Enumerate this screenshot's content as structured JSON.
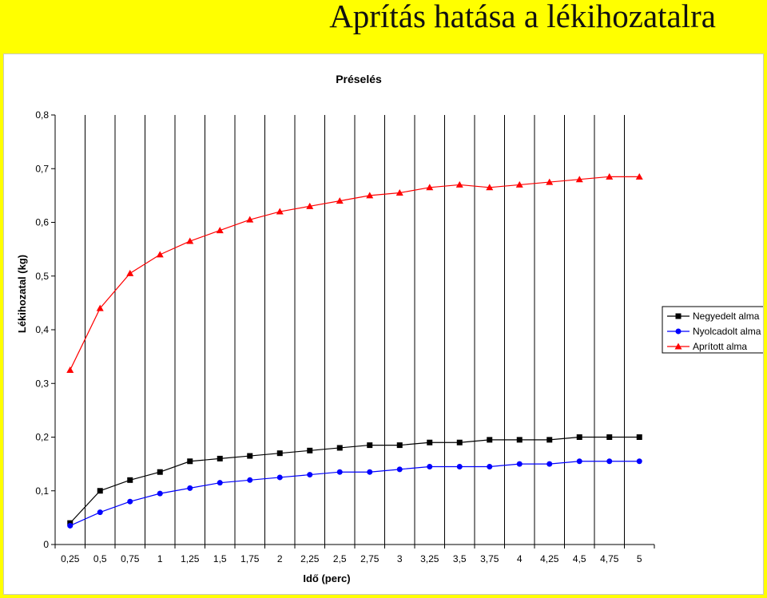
{
  "slide": {
    "title": "Aprítás hatása a lékihozatalra"
  },
  "chart_data": {
    "type": "line",
    "title": "Préselés",
    "xlabel": "Idő (perc)",
    "ylabel": "Lékihozatal (kg)",
    "categories": [
      "0,25",
      "0,5",
      "0,75",
      "1",
      "1,25",
      "1,5",
      "1,75",
      "2",
      "2,25",
      "2,5",
      "2,75",
      "3",
      "3,25",
      "3,5",
      "3,75",
      "4",
      "4,25",
      "4,5",
      "4,75",
      "5"
    ],
    "ylim": [
      0,
      0.8
    ],
    "yticks": [
      0,
      0.1,
      0.2,
      0.3,
      0.4,
      0.5,
      0.6,
      0.7,
      0.8
    ],
    "ytick_labels": [
      "0",
      "0,1",
      "0,2",
      "0,3",
      "0,4",
      "0,5",
      "0,6",
      "0,7",
      "0,8"
    ],
    "grid": "vertical",
    "legend_position": "right",
    "series": [
      {
        "name": "Negyedelt alma",
        "color": "#000000",
        "marker": "square",
        "values": [
          0.04,
          0.1,
          0.12,
          0.135,
          0.155,
          0.16,
          0.165,
          0.17,
          0.175,
          0.18,
          0.185,
          0.185,
          0.19,
          0.19,
          0.195,
          0.195,
          0.195,
          0.2,
          0.2,
          0.2
        ]
      },
      {
        "name": "Nyolcadolt alma",
        "color": "#0000ff",
        "marker": "circle",
        "values": [
          0.035,
          0.06,
          0.08,
          0.095,
          0.105,
          0.115,
          0.12,
          0.125,
          0.13,
          0.135,
          0.135,
          0.14,
          0.145,
          0.145,
          0.145,
          0.15,
          0.15,
          0.155,
          0.155,
          0.155
        ]
      },
      {
        "name": "Aprított alma",
        "color": "#ff0000",
        "marker": "triangle",
        "values": [
          0.325,
          0.44,
          0.505,
          0.54,
          0.565,
          0.585,
          0.605,
          0.62,
          0.63,
          0.64,
          0.65,
          0.655,
          0.665,
          0.67,
          0.665,
          0.67,
          0.675,
          0.68,
          0.685,
          0.685
        ]
      }
    ]
  }
}
